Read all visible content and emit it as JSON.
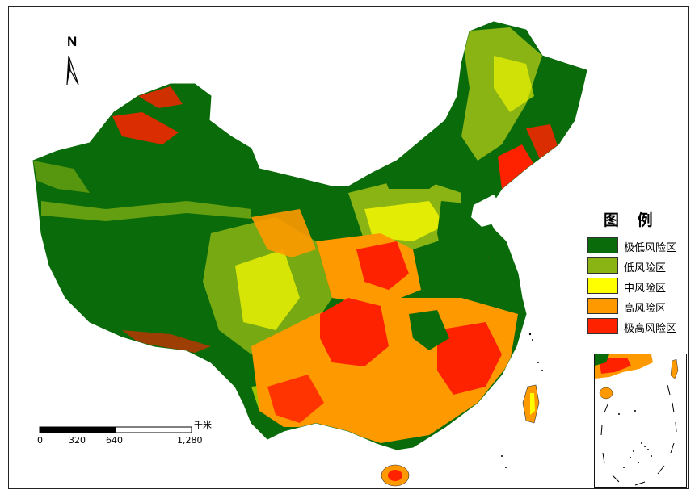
{
  "north_arrow": {
    "label": "N"
  },
  "legend": {
    "title": "图 例",
    "items": [
      {
        "label": "极低风险区",
        "color": "#0a6b0a"
      },
      {
        "label": "低风险区",
        "color": "#8ab414"
      },
      {
        "label": "中风险区",
        "color": "#ffff00"
      },
      {
        "label": "高风险区",
        "color": "#ff9900"
      },
      {
        "label": "极高风险区",
        "color": "#ff2200"
      }
    ]
  },
  "scale_bar": {
    "unit": "千米",
    "ticks": [
      "0",
      "320",
      "640",
      "1,280"
    ]
  },
  "colors": {
    "very_low": "#0a6b0a",
    "low": "#8ab414",
    "medium": "#ffff00",
    "high": "#ff9900",
    "very_high": "#ff2200"
  }
}
